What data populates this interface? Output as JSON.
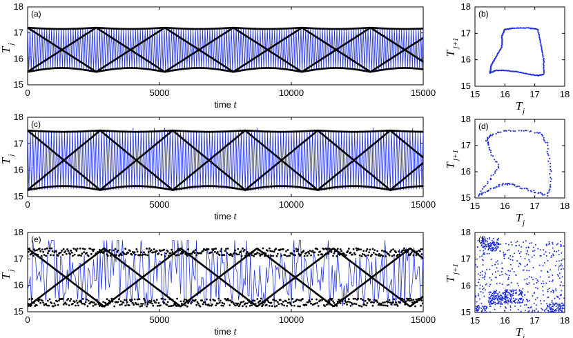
{
  "chart_data": [
    {
      "type": "line",
      "panel_label": "(a)",
      "xlabel_prefix": "time",
      "xlabel_var": "t",
      "ylabel_main": "T",
      "ylabel_sub": "j",
      "xlim": [
        0,
        15000
      ],
      "ylim": [
        15,
        18
      ],
      "xticks": [
        "0",
        "5000",
        "10000",
        "15000"
      ],
      "yticks": [
        "15",
        "16",
        "17",
        "18"
      ],
      "style": "regular",
      "upper_envelope": 17.2,
      "lower_envelope": 15.5,
      "period": 2600,
      "color": "#1f2fe0"
    },
    {
      "type": "scatter",
      "panel_label": "(b)",
      "xlabel_main": "T",
      "xlabel_sub": "j",
      "ylabel_main": "T",
      "ylabel_sub": "j+1",
      "xlim": [
        15,
        18
      ],
      "ylim": [
        15,
        18
      ],
      "xticks": [
        "15",
        "16",
        "17",
        "18"
      ],
      "yticks": [
        "15",
        "16",
        "17",
        "18"
      ],
      "loop": [
        [
          15.5,
          15.5
        ],
        [
          15.7,
          15.6
        ],
        [
          16.0,
          15.6
        ],
        [
          16.4,
          15.55
        ],
        [
          16.8,
          15.45
        ],
        [
          17.1,
          15.4
        ],
        [
          17.3,
          15.45
        ],
        [
          17.3,
          16.0
        ],
        [
          17.2,
          16.6
        ],
        [
          17.1,
          17.15
        ],
        [
          16.8,
          17.2
        ],
        [
          16.3,
          17.2
        ],
        [
          16.0,
          17.15
        ],
        [
          15.9,
          16.9
        ],
        [
          15.9,
          16.5
        ],
        [
          15.7,
          16.1
        ],
        [
          15.55,
          15.8
        ],
        [
          15.5,
          15.5
        ]
      ],
      "color": "#1f2fe0"
    },
    {
      "type": "line",
      "panel_label": "(c)",
      "xlabel_prefix": "time",
      "xlabel_var": "t",
      "ylabel_main": "T",
      "ylabel_sub": "j",
      "xlim": [
        0,
        15000
      ],
      "ylim": [
        15,
        18
      ],
      "xticks": [
        "0",
        "5000",
        "10000",
        "15000"
      ],
      "yticks": [
        "15",
        "16",
        "17",
        "18"
      ],
      "style": "bursting",
      "upper_envelope": 17.5,
      "lower_envelope": 15.25,
      "period": 2750,
      "color": "#1f2fe0"
    },
    {
      "type": "scatter",
      "panel_label": "(d)",
      "xlabel_main": "T",
      "xlabel_sub": "j",
      "ylabel_main": "T",
      "ylabel_sub": "j+1",
      "xlim": [
        15,
        18
      ],
      "ylim": [
        15,
        18
      ],
      "xticks": [
        "15",
        "16",
        "17",
        "18"
      ],
      "yticks": [
        "15",
        "16",
        "17",
        "18"
      ],
      "loop": [
        [
          15.1,
          15.1
        ],
        [
          15.4,
          15.25
        ],
        [
          15.7,
          15.45
        ],
        [
          16.0,
          15.55
        ],
        [
          16.3,
          15.5
        ],
        [
          16.7,
          15.35
        ],
        [
          17.1,
          15.2
        ],
        [
          17.4,
          15.1
        ],
        [
          17.55,
          15.5
        ],
        [
          17.5,
          16.3
        ],
        [
          17.4,
          17.1
        ],
        [
          17.2,
          17.5
        ],
        [
          16.6,
          17.55
        ],
        [
          16.0,
          17.55
        ],
        [
          15.5,
          17.4
        ],
        [
          15.4,
          17.2
        ],
        [
          15.5,
          16.8
        ],
        [
          15.8,
          16.2
        ],
        [
          15.5,
          15.7
        ],
        [
          15.1,
          15.1
        ]
      ],
      "color": "#1f2fe0"
    },
    {
      "type": "line",
      "panel_label": "(e)",
      "xlabel_prefix": "time",
      "xlabel_var": "t",
      "ylabel_main": "T",
      "ylabel_sub": "j",
      "xlim": [
        0,
        15000
      ],
      "ylim": [
        15,
        18
      ],
      "xticks": [
        "0",
        "5000",
        "10000",
        "15000"
      ],
      "yticks": [
        "15",
        "16",
        "17",
        "18"
      ],
      "style": "irregular",
      "upper_envelope": 17.4,
      "lower_envelope": 15.2,
      "period": 2900,
      "color": "#1f2fe0"
    },
    {
      "type": "scatter",
      "panel_label": "(f)",
      "xlabel_main": "T",
      "xlabel_sub": "j",
      "ylabel_main": "T",
      "ylabel_sub": "j+1",
      "xlim": [
        15,
        18
      ],
      "ylim": [
        15,
        18
      ],
      "xticks": [
        "15",
        "16",
        "17",
        "18"
      ],
      "yticks": [
        "15",
        "16",
        "17",
        "18"
      ],
      "clusters": [
        [
          15.5,
          17.55
        ],
        [
          15.75,
          15.55
        ],
        [
          15.1,
          15.0
        ],
        [
          17.7,
          15.1
        ],
        [
          16.3,
          15.6
        ]
      ],
      "color": "#1f2fe0"
    }
  ]
}
